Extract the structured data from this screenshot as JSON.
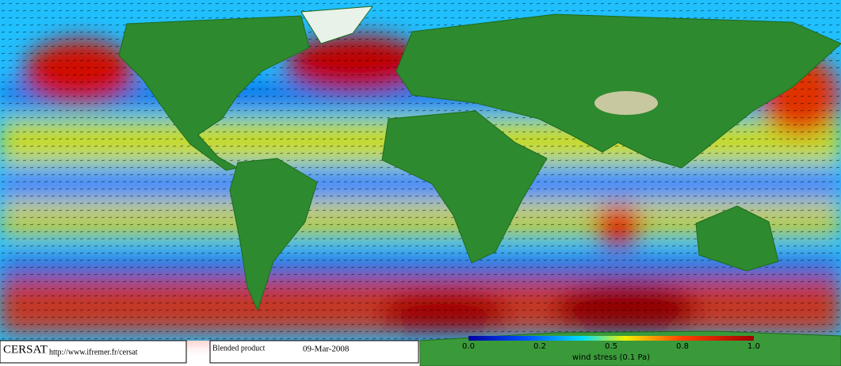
{
  "footer": {
    "logo": "CERSAT",
    "url": "http://www.ifremer.fr/cersat",
    "product": "Blended product",
    "date": "09-Mar-2008"
  },
  "colorbar": {
    "ticks": [
      "0.0",
      "0.2",
      "0.5",
      "0.8",
      "1.0"
    ],
    "label": "wind stress (0.1 Pa)"
  }
}
